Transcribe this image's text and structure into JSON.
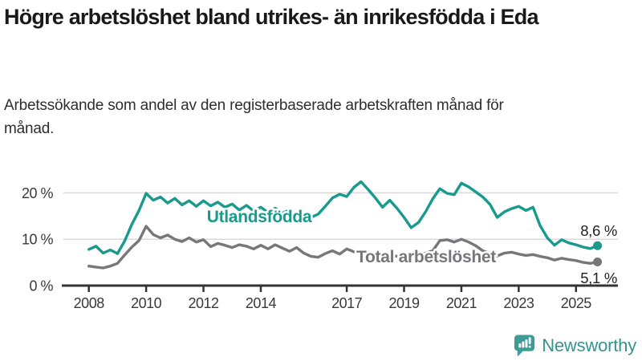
{
  "header": {
    "title": "Högre arbetslöshet bland utrikes- än inrikesfödda i Eda",
    "subtitle": "Arbetssökande som andel av den registerbaserade arbetskraften månad för månad."
  },
  "footer": {
    "brand": "Newsworthy",
    "logo_icon": "bar-chart-speech-bubble-icon"
  },
  "colors": {
    "accent_teal": "#189a8c",
    "series_gray": "#77777b",
    "axis": "#333333",
    "axis_text": "#3a3a3a",
    "gridline": "#d9d9d9",
    "end_label_text": "#222222",
    "logo_teal": "#3d9d95"
  },
  "chart_data": {
    "type": "line",
    "title": "Högre arbetslöshet bland utrikes- än inrikesfödda i Eda",
    "xlabel": "",
    "ylabel": "",
    "grid": "horizontal",
    "legend_position": "inline-labels",
    "y_ticks": [
      0,
      10,
      20
    ],
    "y_tick_labels": [
      "0 %",
      "10 %",
      "20 %"
    ],
    "ylim": [
      0,
      23
    ],
    "x_ticks": [
      2008,
      2010,
      2012,
      2014,
      2017,
      2019,
      2021,
      2023,
      2025
    ],
    "x_tick_labels": [
      "2008",
      "2010",
      "2012",
      "2014",
      "2017",
      "2019",
      "2021",
      "2023",
      "2025"
    ],
    "x_start": 2008.0,
    "x_step": 0.25,
    "x_unit": "year (quarterly samples of monthly data)",
    "series": [
      {
        "name": "Utlandsfödda",
        "color": "#189a8c",
        "end_label": "8,6 %",
        "end_value": 8.6,
        "values": [
          7.8,
          8.5,
          7.0,
          7.7,
          6.9,
          9.6,
          13.2,
          16.2,
          19.9,
          18.4,
          19.1,
          17.8,
          18.8,
          17.4,
          18.3,
          17.1,
          18.3,
          17.2,
          18.0,
          16.9,
          17.6,
          16.3,
          17.3,
          16.1,
          16.9,
          15.8,
          16.7,
          15.6,
          16.3,
          14.9,
          13.9,
          14.7,
          15.4,
          17.1,
          18.9,
          19.7,
          19.2,
          21.2,
          22.4,
          20.7,
          18.9,
          16.9,
          18.4,
          16.7,
          14.7,
          12.5,
          13.6,
          15.9,
          18.7,
          20.9,
          19.9,
          19.6,
          22.1,
          21.3,
          20.2,
          19.1,
          17.5,
          14.7,
          15.9,
          16.6,
          17.1,
          16.2,
          16.9,
          12.9,
          10.3,
          8.7,
          9.9,
          9.2,
          8.8,
          8.3,
          8.0,
          8.6
        ]
      },
      {
        "name": "Total arbetslöshet",
        "color": "#77777b",
        "end_label": "5,1 %",
        "end_value": 5.1,
        "values": [
          4.2,
          4.0,
          3.8,
          4.2,
          4.8,
          6.6,
          8.3,
          9.7,
          12.8,
          11.0,
          10.3,
          10.9,
          10.0,
          9.5,
          10.3,
          9.4,
          9.9,
          8.4,
          9.1,
          8.7,
          8.2,
          8.8,
          8.5,
          7.9,
          8.7,
          7.9,
          8.8,
          8.1,
          7.4,
          8.2,
          7.0,
          6.3,
          6.1,
          6.9,
          7.5,
          6.8,
          7.9,
          7.3,
          6.7,
          7.2,
          6.9,
          6.2,
          6.8,
          6.3,
          6.0,
          6.4,
          6.6,
          7.0,
          7.5,
          9.7,
          9.9,
          9.4,
          10.0,
          9.4,
          8.6,
          7.5,
          6.9,
          6.4,
          7.0,
          7.2,
          6.8,
          6.5,
          6.7,
          6.3,
          6.0,
          5.5,
          5.9,
          5.6,
          5.4,
          5.0,
          4.8,
          5.1
        ]
      }
    ]
  }
}
